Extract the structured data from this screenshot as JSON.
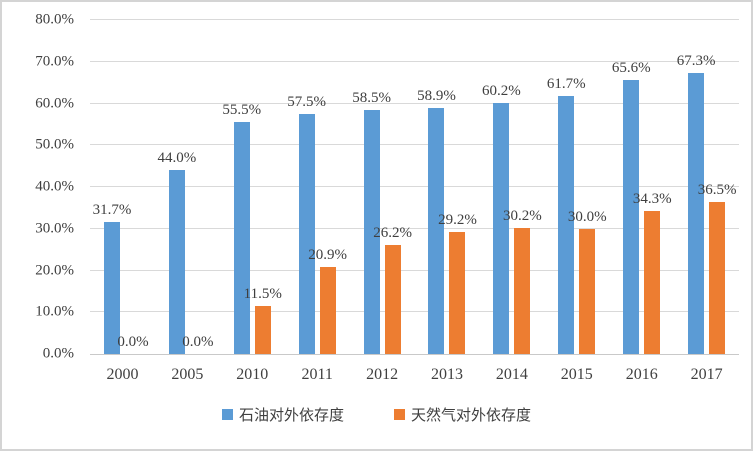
{
  "chart_data": {
    "type": "bar",
    "title": "",
    "xlabel": "",
    "ylabel": "",
    "categories": [
      "2000",
      "2005",
      "2010",
      "2011",
      "2012",
      "2013",
      "2014",
      "2015",
      "2016",
      "2017"
    ],
    "series": [
      {
        "key": "oil",
        "name": "石油对外依存度",
        "color": "#5B9BD5",
        "values": [
          31.7,
          44.0,
          55.5,
          57.5,
          58.5,
          58.9,
          60.2,
          61.7,
          65.6,
          67.3
        ],
        "labels": [
          "31.7%",
          "44.0%",
          "55.5%",
          "57.5%",
          "58.5%",
          "58.9%",
          "60.2%",
          "61.7%",
          "65.6%",
          "67.3%"
        ]
      },
      {
        "key": "gas",
        "name": "天然气对外依存度",
        "color": "#ED7D31",
        "values": [
          0.0,
          0.0,
          11.5,
          20.9,
          26.2,
          29.2,
          30.2,
          30.0,
          34.3,
          36.5
        ],
        "labels": [
          "0.0%",
          "0.0%",
          "11.5%",
          "20.9%",
          "26.2%",
          "29.2%",
          "30.2%",
          "30.0%",
          "34.3%",
          "36.5%"
        ]
      }
    ],
    "y_axis": {
      "min": 0,
      "max": 80,
      "step": 10,
      "tick_labels": [
        "0.0%",
        "10.0%",
        "20.0%",
        "30.0%",
        "40.0%",
        "50.0%",
        "60.0%",
        "70.0%",
        "80.0%"
      ]
    },
    "grid": true,
    "legend_position": "bottom"
  },
  "colors": {
    "oil_blue": "#5B9BD5",
    "gas_orange": "#ED7D31",
    "gridline": "#D9D9D9",
    "axis_line": "#C9C9C9",
    "text": "#404040",
    "frame_border": "#D4D4D4"
  }
}
